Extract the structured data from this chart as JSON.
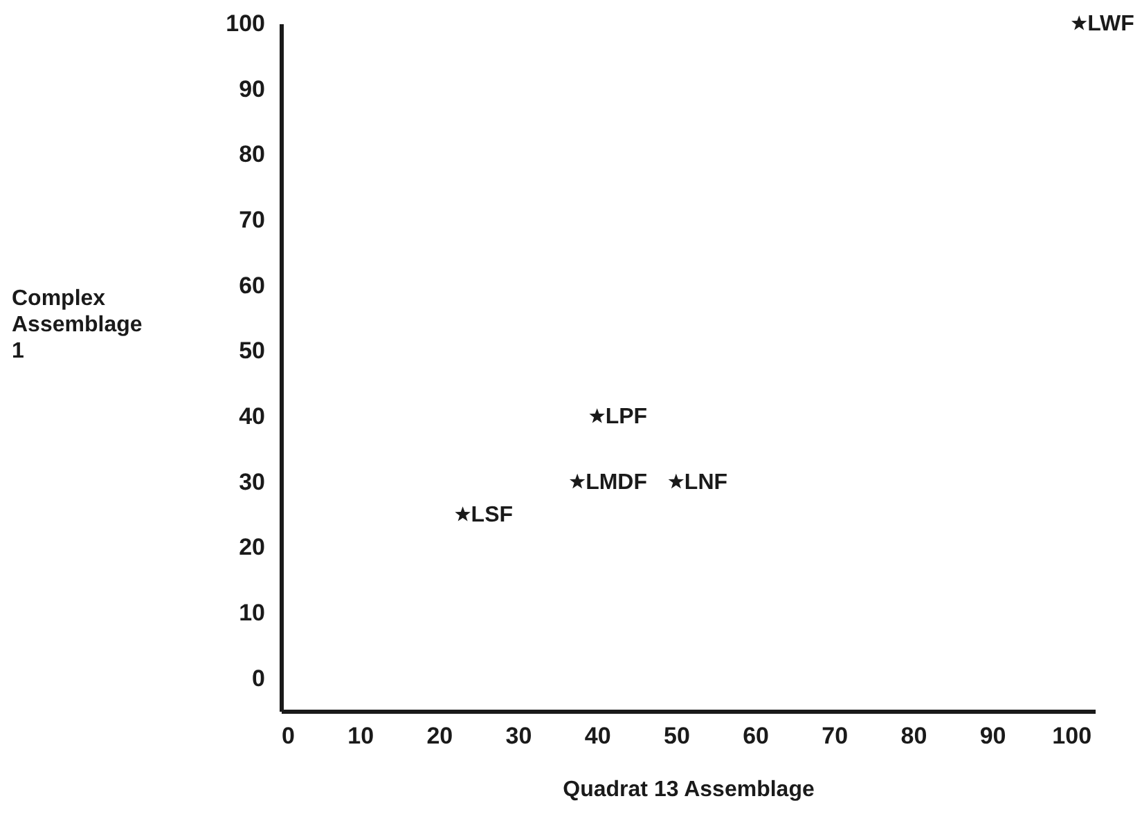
{
  "chart_data": {
    "type": "scatter",
    "xlabel": "Quadrat 13 Assemblage",
    "ylabel": "Complex Assemblage 1",
    "x": [
      101,
      40,
      37.5,
      50,
      23
    ],
    "values": [
      100,
      40,
      30,
      30,
      25
    ],
    "color": "#1a1a1a",
    "marker": "star",
    "grid": false,
    "xlim": [
      0,
      103
    ],
    "ylim": [
      -5,
      100
    ],
    "xticks": [
      0,
      10,
      20,
      30,
      40,
      50,
      60,
      70,
      80,
      90,
      100
    ],
    "yticks": [
      0,
      10,
      20,
      30,
      40,
      50,
      60,
      70,
      80,
      90,
      100
    ],
    "annotations": [
      {
        "text": "LWF",
        "x": 101,
        "y": 100
      },
      {
        "text": "LPF",
        "x": 40,
        "y": 40
      },
      {
        "text": "LMDF",
        "x": 37.5,
        "y": 30
      },
      {
        "text": "LNF",
        "x": 50,
        "y": 30
      },
      {
        "text": "LSF",
        "x": 23,
        "y": 25
      }
    ]
  }
}
